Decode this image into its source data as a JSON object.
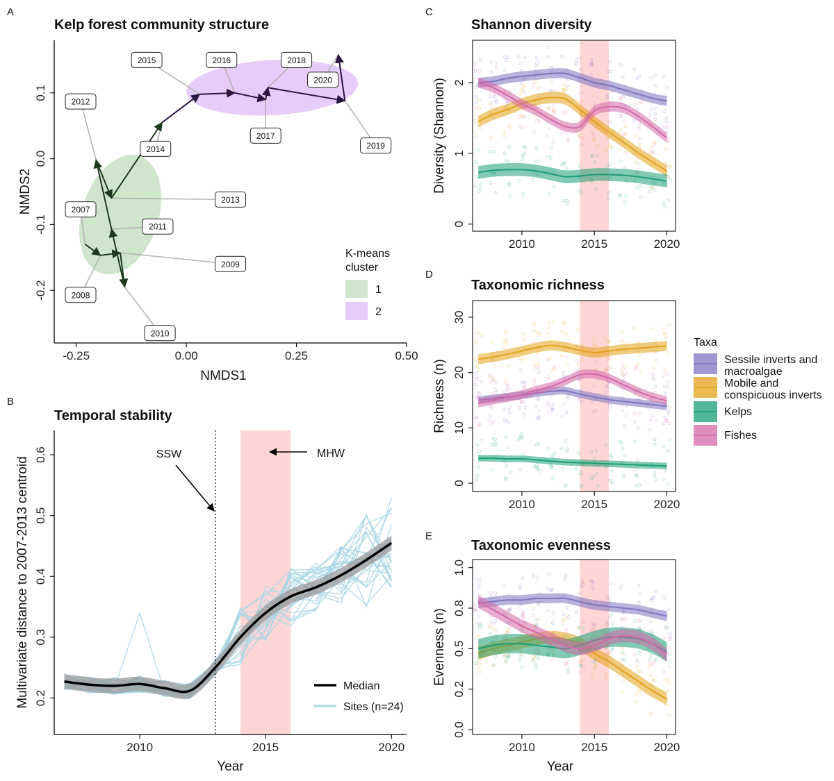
{
  "colors": {
    "sessile": "#7e74c0",
    "mobile": "#e3a21a",
    "kelps": "#1b9e77",
    "fishes": "#d36aa8",
    "mhw": "#ffd6d6",
    "cluster1": "#cfe6cc",
    "cluster2": "#e6ccf8",
    "sites": "#a9d6e5",
    "median": "#000000",
    "ribbon": "#9a9a9a"
  },
  "chart_data": [
    {
      "panel": "A",
      "type": "scatter",
      "title": "Kelp forest community structure",
      "xlabel": "NMDS1",
      "ylabel": "NMDS2",
      "xlim": [
        -0.3,
        0.5
      ],
      "ylim": [
        -0.28,
        0.18
      ],
      "xticks": [
        "-0.25",
        "0.00",
        "0.25",
        "0.50"
      ],
      "xtick_values": [
        -0.25,
        0.0,
        0.25,
        0.5
      ],
      "yticks": [
        "0.1",
        "0.0",
        "-0.1",
        "-0.2"
      ],
      "ytick_values": [
        0.1,
        0.0,
        -0.1,
        -0.2
      ],
      "years": [
        "2007",
        "2008",
        "2009",
        "2010",
        "2011",
        "2012",
        "2013",
        "2014",
        "2015",
        "2016",
        "2017",
        "2018",
        "2019",
        "2020"
      ],
      "trajectory": [
        {
          "year": "2007",
          "x": -0.23,
          "y": -0.13
        },
        {
          "year": "2008",
          "x": -0.195,
          "y": -0.147
        },
        {
          "year": "2009",
          "x": -0.15,
          "y": -0.143
        },
        {
          "year": "2010",
          "x": -0.14,
          "y": -0.195
        },
        {
          "year": "2011",
          "x": -0.17,
          "y": -0.107
        },
        {
          "year": "2012",
          "x": -0.205,
          "y": -0.002
        },
        {
          "year": "2013",
          "x": -0.17,
          "y": -0.06
        },
        {
          "year": "2014",
          "x": -0.055,
          "y": 0.055
        },
        {
          "year": "2015",
          "x": 0.03,
          "y": 0.098
        },
        {
          "year": "2016",
          "x": 0.11,
          "y": 0.1
        },
        {
          "year": "2017",
          "x": 0.18,
          "y": 0.09
        },
        {
          "year": "2018",
          "x": 0.185,
          "y": 0.108
        },
        {
          "year": "2019",
          "x": 0.36,
          "y": 0.088
        },
        {
          "year": "2020",
          "x": 0.345,
          "y": 0.158
        }
      ],
      "year_label_positions": [
        {
          "year": "2007",
          "x": -0.24,
          "y": -0.077
        },
        {
          "year": "2008",
          "x": -0.24,
          "y": -0.207
        },
        {
          "year": "2009",
          "x": 0.1,
          "y": -0.16
        },
        {
          "year": "2010",
          "x": -0.06,
          "y": -0.265
        },
        {
          "year": "2011",
          "x": -0.065,
          "y": -0.103
        },
        {
          "year": "2012",
          "x": -0.24,
          "y": 0.087
        },
        {
          "year": "2013",
          "x": 0.1,
          "y": -0.062
        },
        {
          "year": "2014",
          "x": -0.07,
          "y": 0.015
        },
        {
          "year": "2015",
          "x": -0.09,
          "y": 0.15
        },
        {
          "year": "2016",
          "x": 0.08,
          "y": 0.15
        },
        {
          "year": "2017",
          "x": 0.18,
          "y": 0.035
        },
        {
          "year": "2018",
          "x": 0.25,
          "y": 0.15
        },
        {
          "year": "2019",
          "x": 0.43,
          "y": 0.02
        },
        {
          "year": "2020",
          "x": 0.31,
          "y": 0.12
        }
      ],
      "clusters": [
        {
          "name": "1",
          "cx": -0.15,
          "cy": -0.085,
          "rx": 0.14,
          "ry": 0.058,
          "angle_deg": -72
        },
        {
          "name": "2",
          "cx": 0.195,
          "cy": 0.108,
          "rx": 0.195,
          "ry": 0.042,
          "angle_deg": -3
        }
      ],
      "legend_title": "K-means\ncluster",
      "legend_title_lines": [
        "K-means",
        "cluster"
      ],
      "legend": [
        "1",
        "2"
      ]
    },
    {
      "panel": "B",
      "type": "line",
      "title": "Temporal stability",
      "xlabel": "Year",
      "ylabel": "Multivariate distance to 2007-2013 centroid",
      "xlim": [
        2006.6,
        2020.6
      ],
      "ylim": [
        0.14,
        0.64
      ],
      "xticks": [
        "2010",
        "2015",
        "2020"
      ],
      "xtick_values": [
        2010,
        2015,
        2020
      ],
      "yticks": [
        "0.2",
        "0.3",
        "0.4",
        "0.5",
        "0.6"
      ],
      "ytick_values": [
        0.2,
        0.3,
        0.4,
        0.5,
        0.6
      ],
      "x": [
        2007,
        2008,
        2009,
        2010,
        2011,
        2012,
        2013,
        2014,
        2015,
        2016,
        2017,
        2018,
        2019,
        2020
      ],
      "median": [
        0.227,
        0.222,
        0.22,
        0.223,
        0.216,
        0.212,
        0.25,
        0.3,
        0.34,
        0.367,
        0.382,
        0.402,
        0.427,
        0.455
      ],
      "ribbon_halfwidth": 0.012,
      "site_count": 24,
      "mhw_range": [
        2014,
        2016
      ],
      "ssw_year": 2013,
      "annotations": [
        "SSW",
        "MHW"
      ],
      "legend": [
        "Median",
        "Sites (n=24)"
      ]
    },
    {
      "panel": "C",
      "type": "line",
      "title": "Shannon diversity",
      "xlabel": "",
      "ylabel": "Diversity (Shannon)",
      "xlim": [
        2006.6,
        2020.6
      ],
      "ylim": [
        -0.1,
        2.6
      ],
      "xticks": [
        "2010",
        "2015",
        "2020"
      ],
      "xtick_values": [
        2010,
        2015,
        2020
      ],
      "yticks": [
        "0",
        "1",
        "2"
      ],
      "ytick_values": [
        0,
        1,
        2
      ],
      "mhw_range": [
        2014,
        2016
      ],
      "x": [
        2007,
        2008,
        2009,
        2010,
        2011,
        2012,
        2013,
        2014,
        2015,
        2016,
        2017,
        2018,
        2019,
        2020
      ],
      "series": [
        {
          "name": "Sessile inverts and macroalgae",
          "values": [
            2.0,
            2.02,
            2.06,
            2.09,
            2.11,
            2.13,
            2.13,
            2.07,
            2.0,
            1.96,
            1.9,
            1.84,
            1.78,
            1.74
          ],
          "band": 0.07
        },
        {
          "name": "Mobile and conspicuous inverts",
          "values": [
            1.45,
            1.55,
            1.62,
            1.7,
            1.76,
            1.79,
            1.77,
            1.62,
            1.45,
            1.3,
            1.16,
            1.01,
            0.88,
            0.75
          ],
          "band": 0.08
        },
        {
          "name": "Kelps",
          "values": [
            0.73,
            0.76,
            0.77,
            0.77,
            0.75,
            0.71,
            0.67,
            0.68,
            0.7,
            0.7,
            0.69,
            0.67,
            0.64,
            0.61
          ],
          "band": 0.09
        },
        {
          "name": "Fishes",
          "values": [
            2.0,
            1.93,
            1.82,
            1.7,
            1.6,
            1.48,
            1.38,
            1.38,
            1.6,
            1.66,
            1.64,
            1.53,
            1.38,
            1.22
          ],
          "band": 0.07
        }
      ]
    },
    {
      "panel": "D",
      "type": "line",
      "title": "Taxonomic richness",
      "xlabel": "",
      "ylabel": "Richness (n)",
      "xlim": [
        2006.6,
        2020.6
      ],
      "ylim": [
        -1.5,
        33
      ],
      "xticks": [
        "2010",
        "2015",
        "2020"
      ],
      "xtick_values": [
        2010,
        2015,
        2020
      ],
      "yticks": [
        "0",
        "10",
        "20",
        "30"
      ],
      "ytick_values": [
        0,
        10,
        20,
        30
      ],
      "mhw_range": [
        2014,
        2016
      ],
      "x": [
        2007,
        2008,
        2009,
        2010,
        2011,
        2012,
        2013,
        2014,
        2015,
        2016,
        2017,
        2018,
        2019,
        2020
      ],
      "series": [
        {
          "name": "Sessile inverts and macroalgae",
          "values": [
            15.0,
            15.3,
            15.6,
            15.9,
            16.3,
            16.6,
            16.7,
            16.1,
            15.6,
            15.1,
            14.8,
            14.5,
            14.2,
            13.9
          ],
          "band": 0.7
        },
        {
          "name": "Mobile and conspicuous inverts",
          "values": [
            22.4,
            22.8,
            23.3,
            23.9,
            24.5,
            24.9,
            24.6,
            24.0,
            23.6,
            23.9,
            24.2,
            24.4,
            24.6,
            24.8
          ],
          "band": 0.9
        },
        {
          "name": "Kelps",
          "values": [
            4.5,
            4.5,
            4.4,
            4.4,
            4.2,
            4.0,
            3.8,
            3.7,
            3.6,
            3.5,
            3.4,
            3.3,
            3.2,
            3.1
          ],
          "band": 0.6
        },
        {
          "name": "Fishes",
          "values": [
            14.5,
            15.0,
            15.5,
            16.0,
            16.8,
            17.5,
            18.5,
            19.6,
            19.7,
            19.0,
            17.8,
            16.6,
            15.6,
            14.9
          ],
          "band": 0.8
        }
      ]
    },
    {
      "panel": "E",
      "type": "line",
      "title": "Taxonomic evenness",
      "xlabel": "Year",
      "ylabel": "Evenness (n)",
      "xlim": [
        2006.6,
        2020.6
      ],
      "ylim": [
        -0.03,
        1.05
      ],
      "xticks": [
        "2010",
        "2015",
        "2020"
      ],
      "xtick_values": [
        2010,
        2015,
        2020
      ],
      "yticks": [
        "0.0",
        "0.2",
        "0.5",
        "0.8",
        "1.0"
      ],
      "ytick_values": [
        0.0,
        0.25,
        0.5,
        0.75,
        1.0
      ],
      "mhw_range": [
        2014,
        2016
      ],
      "x": [
        2007,
        2008,
        2009,
        2010,
        2011,
        2012,
        2013,
        2014,
        2015,
        2016,
        2017,
        2018,
        2019,
        2020
      ],
      "series": [
        {
          "name": "Sessile inverts and macroalgae",
          "values": [
            0.78,
            0.79,
            0.8,
            0.8,
            0.81,
            0.81,
            0.81,
            0.79,
            0.77,
            0.76,
            0.75,
            0.74,
            0.72,
            0.7
          ],
          "band": 0.03
        },
        {
          "name": "Mobile and conspicuous inverts",
          "values": [
            0.47,
            0.5,
            0.52,
            0.54,
            0.56,
            0.57,
            0.56,
            0.53,
            0.47,
            0.42,
            0.36,
            0.3,
            0.24,
            0.19
          ],
          "band": 0.04
        },
        {
          "name": "Kelps",
          "values": [
            0.5,
            0.52,
            0.53,
            0.53,
            0.52,
            0.51,
            0.5,
            0.52,
            0.55,
            0.57,
            0.57,
            0.56,
            0.53,
            0.48
          ],
          "band": 0.06
        },
        {
          "name": "Fishes",
          "values": [
            0.79,
            0.74,
            0.69,
            0.64,
            0.6,
            0.56,
            0.52,
            0.5,
            0.52,
            0.56,
            0.58,
            0.57,
            0.53,
            0.46
          ],
          "band": 0.04
        }
      ]
    }
  ],
  "legend_taxa": {
    "title": "Taxa",
    "items": [
      {
        "name": "Sessile inverts and macroalgae",
        "lines": [
          "Sessile inverts and",
          "macroalgae"
        ],
        "color_key": "sessile"
      },
      {
        "name": "Mobile and conspicuous inverts",
        "lines": [
          "Mobile and",
          "conspicuous inverts"
        ],
        "color_key": "mobile"
      },
      {
        "name": "Kelps",
        "lines": [
          "Kelps"
        ],
        "color_key": "kelps"
      },
      {
        "name": "Fishes",
        "lines": [
          "Fishes"
        ],
        "color_key": "fishes"
      }
    ]
  },
  "panel_letters": [
    "A",
    "B",
    "C",
    "D",
    "E"
  ]
}
